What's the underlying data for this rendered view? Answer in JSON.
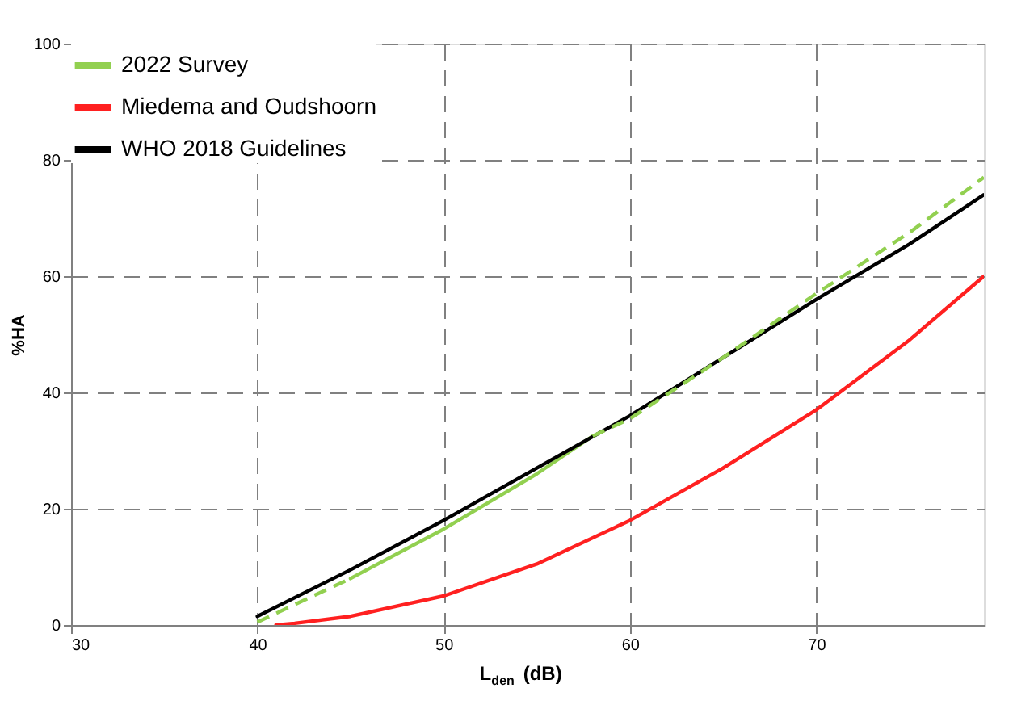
{
  "chart_data": {
    "type": "line",
    "xlabel": "L$_{den}$ (dB)",
    "ylabel": "%HA",
    "xlim": [
      30,
      79
    ],
    "xticks": [
      30,
      40,
      50,
      60,
      70
    ],
    "ylim": [
      0,
      100
    ],
    "yticks": [
      0,
      20,
      40,
      60,
      80,
      100
    ],
    "grid": true,
    "legend": "top left",
    "line_style": "solid",
    "marker": "none",
    "series": [
      {
        "name": "2022 Survey",
        "color": "#92d050",
        "x": [
          45,
          50,
          55,
          58
        ],
        "values": [
          8,
          16.5,
          26,
          32.5
        ]
      },
      {
        "name": "Miedema and Oudshoorn",
        "color": "#ff2020",
        "x": [
          41,
          42,
          45,
          50,
          55,
          60,
          65,
          70,
          75,
          79
        ],
        "values": [
          0,
          0.3,
          1.5,
          5,
          10.5,
          18,
          27,
          37,
          49,
          60
        ]
      },
      {
        "name": "WHO 2018 Guidelines",
        "color": "#000000",
        "x": [
          40,
          45,
          50,
          55,
          60,
          65,
          70,
          75,
          79
        ],
        "values": [
          1.5,
          9.5,
          18,
          27,
          36,
          46,
          56,
          65.5,
          74
        ]
      },
      {
        "color": "#92d050",
        "line_style": "dashed",
        "x": [
          40,
          45
        ],
        "values": [
          0.5,
          8
        ]
      },
      {
        "color": "#92d050",
        "line_style": "dashed",
        "x": [
          58,
          60,
          65,
          70,
          75,
          79
        ],
        "values": [
          32.5,
          35.5,
          46,
          57,
          67.5,
          77
        ]
      }
    ]
  }
}
